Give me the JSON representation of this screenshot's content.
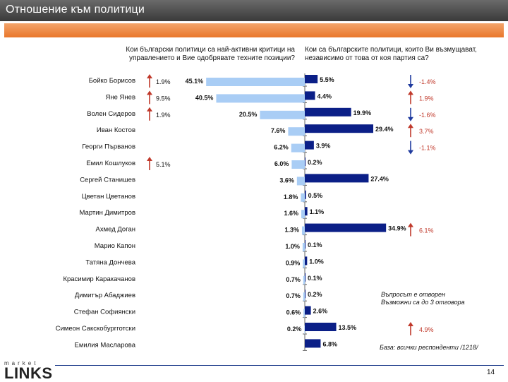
{
  "header": {
    "title": "Отношение към политици"
  },
  "questions": {
    "left": "Кои български политици са най-активни критици на управлението и Вие одобрявате техните позиции?",
    "right": "Кои са българските политици, които Ви възмущават, независимо от това от коя партия са?"
  },
  "notes": {
    "multi_line1": "Въпросът е отворен",
    "multi_line2": "Възможни са до 3 отговора",
    "base": "База: всички респонденти /1218/"
  },
  "logo": {
    "top": "market",
    "bottom": "LINKS"
  },
  "page": {
    "number": "14"
  },
  "colors": {
    "left_bar": "#a9cdf5",
    "right_bar": "#0b1f87",
    "up_arrow": "#c0392b",
    "down_arrow": "#1f3a9e",
    "change_text": "#c0392b"
  },
  "chart_data": {
    "type": "bar",
    "orientation": "horizontal-diverging",
    "categories": [
      "Бойко Борисов",
      "Яне Янев",
      "Волен Сидеров",
      "Иван Костов",
      "Георги Първанов",
      "Емил Кошлуков",
      "Сергей Станишев",
      "Цветан Цветанов",
      "Мартин Димитров",
      "Ахмед Доган",
      "Марио Капон",
      "Татяна Дончева",
      "Красимир Каракачанов",
      "Димитър Абаджиев",
      "Стефан Софиянски",
      "Симеон Сакскобургготски",
      "Емилия Масларова"
    ],
    "series": [
      {
        "name": "Одобряват позициите (критици на управлението)",
        "values": [
          45.1,
          40.5,
          20.5,
          7.6,
          6.2,
          6.0,
          3.6,
          1.8,
          1.6,
          1.3,
          1.0,
          0.9,
          0.7,
          0.7,
          0.6,
          0.2,
          0.0
        ],
        "labels": [
          "45.1%",
          "40.5%",
          "20.5%",
          "7.6%",
          "6.2%",
          "6.0%",
          "3.6%",
          "1.8%",
          "1.6%",
          "1.3%",
          "1.0%",
          "0.9%",
          "0.7%",
          "0.7%",
          "0.6%",
          "0.2%",
          ""
        ]
      },
      {
        "name": "Възмущават",
        "values": [
          5.5,
          4.4,
          19.9,
          29.4,
          3.9,
          0.2,
          27.4,
          0.5,
          1.1,
          34.9,
          0.1,
          1.0,
          0.1,
          0.2,
          2.6,
          13.5,
          6.8
        ],
        "labels": [
          "5.5%",
          "4.4%",
          "19.9%",
          "29.4%",
          "3.9%",
          "0.2%",
          "27.4%",
          "0.5%",
          "1.1%",
          "34.9%",
          "0.1%",
          "1.0%",
          "0.1%",
          "0.2%",
          "2.6%",
          "13.5%",
          "6.8%"
        ]
      }
    ],
    "left_changes": [
      {
        "index": 0,
        "label": "1.9%",
        "direction": "up"
      },
      {
        "index": 1,
        "label": "9.5%",
        "direction": "up"
      },
      {
        "index": 2,
        "label": "1.9%",
        "direction": "up"
      },
      {
        "index": 5,
        "label": "5.1%",
        "direction": "up"
      }
    ],
    "right_changes": [
      {
        "index": 0,
        "label": "-1.4%",
        "direction": "down"
      },
      {
        "index": 1,
        "label": "1.9%",
        "direction": "up"
      },
      {
        "index": 2,
        "label": "-1.6%",
        "direction": "down"
      },
      {
        "index": 3,
        "label": "3.7%",
        "direction": "up"
      },
      {
        "index": 4,
        "label": "-1.1%",
        "direction": "down"
      },
      {
        "index": 9,
        "label": "6.1%",
        "direction": "up"
      },
      {
        "index": 15,
        "label": "4.9%",
        "direction": "up"
      }
    ],
    "xlim": [
      0,
      50
    ]
  }
}
